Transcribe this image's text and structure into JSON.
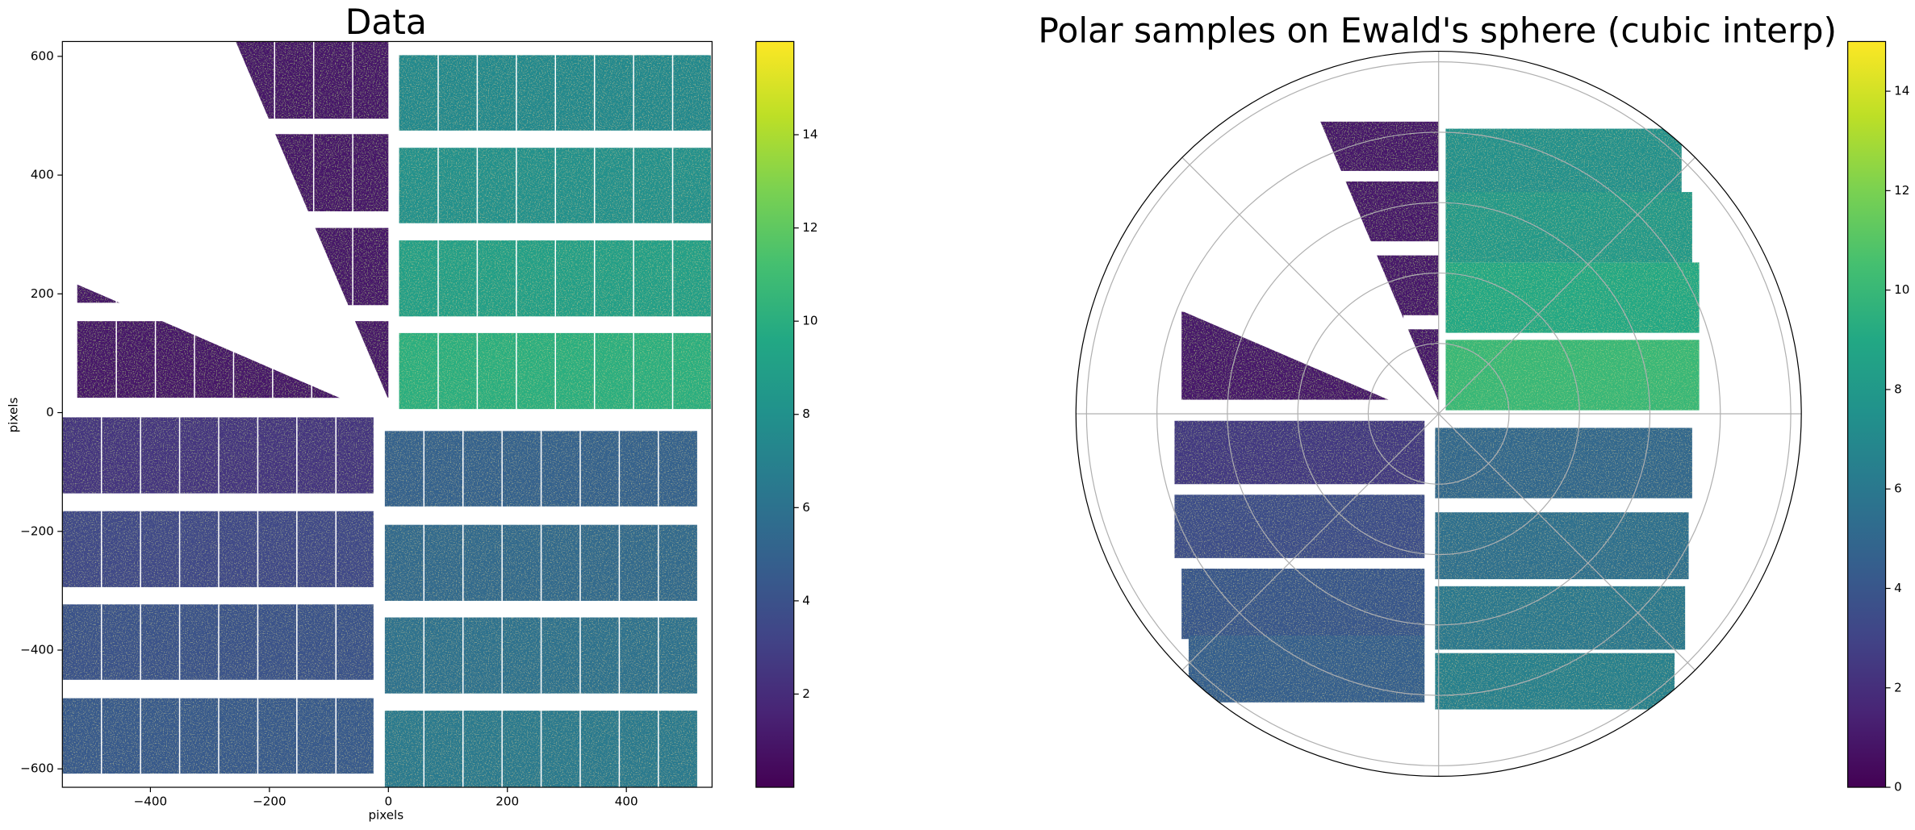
{
  "chart_data": [
    {
      "type": "image",
      "title": "Data",
      "xlabel": "pixels",
      "ylabel": "pixels",
      "xlim": [
        -548,
        544
      ],
      "ylim": [
        -631,
        625
      ],
      "xticks": [
        {
          "value": -400,
          "label": "−400"
        },
        {
          "value": -200,
          "label": "−200"
        },
        0,
        200,
        400
      ],
      "yticks": [
        {
          "value": -600,
          "label": "−600"
        },
        {
          "value": -400,
          "label": "−400"
        },
        {
          "value": -200,
          "label": "−200"
        },
        0,
        200,
        400,
        600
      ],
      "colormap": "viridis",
      "clim": [
        0,
        16
      ],
      "cticks": [
        2,
        4,
        6,
        8,
        10,
        12,
        14
      ],
      "panels": [
        {
          "x": [
            18,
            542
          ],
          "y": [
            475,
            602
          ],
          "value": 7.5
        },
        {
          "x": [
            18,
            542
          ],
          "y": [
            319,
            446
          ],
          "value": 8
        },
        {
          "x": [
            18,
            542
          ],
          "y": [
            162,
            290
          ],
          "value": 9
        },
        {
          "x": [
            18,
            542
          ],
          "y": [
            6,
            134
          ],
          "value": 10
        },
        {
          "x": [
            -6,
            519
          ],
          "y": [
            -158,
            -31
          ],
          "value": 5
        },
        {
          "x": [
            -6,
            519
          ],
          "y": [
            -317,
            -189
          ],
          "value": 5.5
        },
        {
          "x": [
            -6,
            519
          ],
          "y": [
            -473,
            -345
          ],
          "value": 6
        },
        {
          "x": [
            -6,
            519
          ],
          "y": [
            -631,
            -502
          ],
          "value": 6.5
        },
        {
          "x": [
            -548,
            -25
          ],
          "y": [
            -136,
            -8
          ],
          "value": 2.5
        },
        {
          "x": [
            -548,
            -25
          ],
          "y": [
            -294,
            -166
          ],
          "value": 3.5
        },
        {
          "x": [
            -548,
            -25
          ],
          "y": [
            -450,
            -323
          ],
          "value": 4
        },
        {
          "x": [
            -548,
            -25
          ],
          "y": [
            -608,
            -481
          ],
          "value": 4.5
        },
        {
          "x": [
            -257,
            0
          ],
          "y": [
            495,
            625
          ],
          "value": 1
        },
        {
          "x": [
            -257,
            0
          ],
          "y": [
            339,
            469
          ],
          "value": 1
        },
        {
          "x": [
            -257,
            0
          ],
          "y": [
            181,
            311
          ],
          "value": 1
        },
        {
          "x": [
            -257,
            0
          ],
          "y": [
            25,
            154
          ],
          "value": 1
        },
        {
          "x": [
            -523,
            -441
          ],
          "y": [
            185,
            216
          ],
          "value": 1
        },
        {
          "x": [
            -523,
            -64
          ],
          "y": [
            25,
            154
          ],
          "value": 1
        }
      ]
    },
    {
      "type": "polar",
      "title": "Polar samples on Ewald's sphere (cubic interp)",
      "rlim": [
        0,
        1.03
      ],
      "rgrid": [
        0.2,
        0.4,
        0.6,
        0.8,
        1.0
      ],
      "thetagrid": [
        0,
        45,
        90,
        135,
        180,
        225,
        270,
        315
      ],
      "colormap": "viridis",
      "clim": [
        0,
        15
      ],
      "cticks": [
        0,
        2,
        4,
        6,
        8,
        10,
        12,
        14
      ],
      "panels": [
        {
          "x": [
            0.02,
            0.69
          ],
          "y": [
            0.62,
            0.81
          ],
          "value": 7.5
        },
        {
          "x": [
            0.02,
            0.72
          ],
          "y": [
            0.43,
            0.63
          ],
          "value": 8
        },
        {
          "x": [
            0.02,
            0.74
          ],
          "y": [
            0.23,
            0.43
          ],
          "value": 9
        },
        {
          "x": [
            0.02,
            0.74
          ],
          "y": [
            0.01,
            0.21
          ],
          "value": 10
        },
        {
          "x": [
            -0.01,
            0.72
          ],
          "y": [
            -0.24,
            -0.04
          ],
          "value": 5
        },
        {
          "x": [
            -0.01,
            0.71
          ],
          "y": [
            -0.47,
            -0.28
          ],
          "value": 5.5
        },
        {
          "x": [
            -0.01,
            0.7
          ],
          "y": [
            -0.67,
            -0.49
          ],
          "value": 6
        },
        {
          "x": [
            -0.01,
            0.67
          ],
          "y": [
            -0.84,
            -0.68
          ],
          "value": 6.5
        },
        {
          "x": [
            -0.75,
            -0.04
          ],
          "y": [
            -0.2,
            -0.02
          ],
          "value": 2.5
        },
        {
          "x": [
            -0.75,
            -0.04
          ],
          "y": [
            -0.41,
            -0.23
          ],
          "value": 3.5
        },
        {
          "x": [
            -0.73,
            -0.04
          ],
          "y": [
            -0.64,
            -0.44
          ],
          "value": 4
        },
        {
          "x": [
            -0.71,
            -0.04
          ],
          "y": [
            -0.82,
            -0.63
          ],
          "value": 4.5
        },
        {
          "x": [
            -0.34,
            0
          ],
          "y": [
            0.69,
            0.83
          ],
          "value": 1
        },
        {
          "x": [
            -0.27,
            0
          ],
          "y": [
            0.49,
            0.66
          ],
          "value": 1
        },
        {
          "x": [
            -0.19,
            0
          ],
          "y": [
            0.28,
            0.45
          ],
          "value": 1
        },
        {
          "x": [
            -0.09,
            0
          ],
          "y": [
            0.04,
            0.24
          ],
          "value": 1
        },
        {
          "x": [
            -0.73,
            -0.1
          ],
          "y": [
            0.04,
            0.29
          ],
          "value": 1
        }
      ]
    }
  ]
}
